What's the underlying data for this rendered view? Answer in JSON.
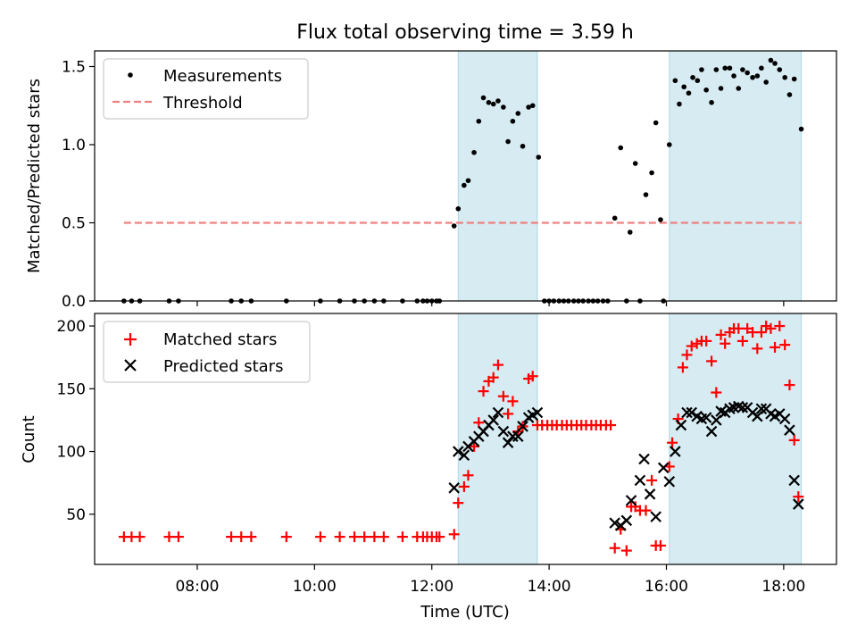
{
  "title": "Flux total observing time = 3.59 h",
  "colors": {
    "band": "#add8e6",
    "threshold": "#f08080",
    "measurements": "#000000",
    "matched": "#ff0000",
    "predicted": "#000000"
  },
  "x_axis": {
    "label": "Time (UTC)",
    "range_hours": [
      6.25,
      18.9
    ],
    "ticks": [
      {
        "hour": 8,
        "label": "08:00"
      },
      {
        "hour": 10,
        "label": "10:00"
      },
      {
        "hour": 12,
        "label": "12:00"
      },
      {
        "hour": 14,
        "label": "14:00"
      },
      {
        "hour": 16,
        "label": "16:00"
      },
      {
        "hour": 18,
        "label": "18:00"
      }
    ]
  },
  "shaded_intervals_hours": [
    [
      12.45,
      13.8
    ],
    [
      16.05,
      18.3
    ]
  ],
  "chart_data": [
    {
      "type": "scatter",
      "panel": "top",
      "ylabel": "Matched/Predicted stars",
      "ylim": [
        0,
        1.6
      ],
      "yticks": [
        {
          "v": 0,
          "label": "0.0"
        },
        {
          "v": 0.5,
          "label": "0.5"
        },
        {
          "v": 1.0,
          "label": "1.0"
        },
        {
          "v": 1.5,
          "label": "1.5"
        }
      ],
      "legend": {
        "placement": "upper-left",
        "entries": [
          {
            "label": "Measurements",
            "marker": "dot"
          },
          {
            "label": "Threshold",
            "marker": "dashed-line"
          }
        ]
      },
      "threshold": {
        "y": 0.5,
        "x_range": [
          6.75,
          18.3
        ]
      },
      "series": [
        {
          "name": "Measurements",
          "points": [
            [
              6.75,
              0
            ],
            [
              6.88,
              0
            ],
            [
              7.02,
              0
            ],
            [
              7.52,
              0
            ],
            [
              7.68,
              0
            ],
            [
              8.58,
              0
            ],
            [
              8.75,
              0
            ],
            [
              8.92,
              0
            ],
            [
              9.52,
              0
            ],
            [
              10.1,
              0
            ],
            [
              10.43,
              0
            ],
            [
              10.68,
              0
            ],
            [
              10.85,
              0
            ],
            [
              11.02,
              0
            ],
            [
              11.18,
              0
            ],
            [
              11.5,
              0
            ],
            [
              11.75,
              0
            ],
            [
              11.85,
              0
            ],
            [
              11.92,
              0
            ],
            [
              12.0,
              0
            ],
            [
              12.08,
              0
            ],
            [
              12.13,
              0
            ],
            [
              12.38,
              0.48
            ],
            [
              12.45,
              0.59
            ],
            [
              12.55,
              0.74
            ],
            [
              12.62,
              0.77
            ],
            [
              12.72,
              0.95
            ],
            [
              12.8,
              1.15
            ],
            [
              12.88,
              1.3
            ],
            [
              12.97,
              1.27
            ],
            [
              13.05,
              1.26
            ],
            [
              13.13,
              1.28
            ],
            [
              13.22,
              1.24
            ],
            [
              13.3,
              1.02
            ],
            [
              13.38,
              1.15
            ],
            [
              13.47,
              1.2
            ],
            [
              13.55,
              0.99
            ],
            [
              13.65,
              1.24
            ],
            [
              13.72,
              1.25
            ],
            [
              13.82,
              0.92
            ],
            [
              13.92,
              0
            ],
            [
              14.0,
              0
            ],
            [
              14.08,
              0
            ],
            [
              14.17,
              0
            ],
            [
              14.25,
              0
            ],
            [
              14.33,
              0
            ],
            [
              14.42,
              0
            ],
            [
              14.5,
              0
            ],
            [
              14.58,
              0
            ],
            [
              14.67,
              0
            ],
            [
              14.75,
              0
            ],
            [
              14.83,
              0
            ],
            [
              14.92,
              0
            ],
            [
              15.0,
              0
            ],
            [
              15.12,
              0.53
            ],
            [
              15.22,
              0.98
            ],
            [
              15.32,
              0
            ],
            [
              15.38,
              0.44
            ],
            [
              15.47,
              0.88
            ],
            [
              15.55,
              0
            ],
            [
              15.65,
              0.68
            ],
            [
              15.75,
              0.82
            ],
            [
              15.82,
              1.14
            ],
            [
              15.9,
              0.52
            ],
            [
              15.95,
              0
            ],
            [
              16.05,
              1.0
            ],
            [
              16.15,
              1.41
            ],
            [
              16.22,
              1.26
            ],
            [
              16.3,
              1.37
            ],
            [
              16.38,
              1.33
            ],
            [
              16.45,
              1.43
            ],
            [
              16.53,
              1.41
            ],
            [
              16.6,
              1.48
            ],
            [
              16.68,
              1.35
            ],
            [
              16.77,
              1.27
            ],
            [
              16.85,
              1.48
            ],
            [
              16.93,
              1.36
            ],
            [
              17.0,
              1.49
            ],
            [
              17.08,
              1.49
            ],
            [
              17.15,
              1.44
            ],
            [
              17.23,
              1.36
            ],
            [
              17.3,
              1.48
            ],
            [
              17.38,
              1.46
            ],
            [
              17.47,
              1.43
            ],
            [
              17.55,
              1.44
            ],
            [
              17.62,
              1.49
            ],
            [
              17.7,
              1.4
            ],
            [
              17.78,
              1.54
            ],
            [
              17.85,
              1.52
            ],
            [
              17.93,
              1.48
            ],
            [
              18.02,
              1.43
            ],
            [
              18.1,
              1.32
            ],
            [
              18.18,
              1.42
            ],
            [
              18.3,
              1.1
            ]
          ]
        }
      ]
    },
    {
      "type": "scatter",
      "panel": "bottom",
      "ylabel": "Count",
      "xlabel": "Time (UTC)",
      "ylim": [
        10,
        210
      ],
      "yticks": [
        {
          "v": 50,
          "label": "50"
        },
        {
          "v": 100,
          "label": "100"
        },
        {
          "v": 150,
          "label": "150"
        },
        {
          "v": 200,
          "label": "200"
        }
      ],
      "legend": {
        "placement": "upper-left",
        "entries": [
          {
            "label": "Matched stars",
            "marker": "plus"
          },
          {
            "label": "Predicted stars",
            "marker": "cross"
          }
        ]
      },
      "series": [
        {
          "name": "Matched stars",
          "points": [
            [
              6.75,
              32
            ],
            [
              6.88,
              32
            ],
            [
              7.02,
              32
            ],
            [
              7.52,
              32
            ],
            [
              7.68,
              32
            ],
            [
              8.58,
              32
            ],
            [
              8.75,
              32
            ],
            [
              8.92,
              32
            ],
            [
              9.52,
              32
            ],
            [
              10.1,
              32
            ],
            [
              10.43,
              32
            ],
            [
              10.68,
              32
            ],
            [
              10.85,
              32
            ],
            [
              11.02,
              32
            ],
            [
              11.18,
              32
            ],
            [
              11.5,
              32
            ],
            [
              11.75,
              32
            ],
            [
              11.85,
              32
            ],
            [
              11.92,
              32
            ],
            [
              12.0,
              32
            ],
            [
              12.08,
              32
            ],
            [
              12.13,
              32
            ],
            [
              12.38,
              34
            ],
            [
              12.45,
              59
            ],
            [
              12.55,
              72
            ],
            [
              12.62,
              81
            ],
            [
              12.72,
              104
            ],
            [
              12.8,
              123
            ],
            [
              12.88,
              148
            ],
            [
              12.97,
              156
            ],
            [
              13.05,
              159
            ],
            [
              13.13,
              169
            ],
            [
              13.22,
              144
            ],
            [
              13.3,
              130
            ],
            [
              13.38,
              140
            ],
            [
              13.47,
              116
            ],
            [
              13.55,
              120
            ],
            [
              13.65,
              158
            ],
            [
              13.72,
              160
            ],
            [
              13.8,
              121
            ],
            [
              13.88,
              121
            ],
            [
              13.97,
              121
            ],
            [
              14.05,
              121
            ],
            [
              14.13,
              121
            ],
            [
              14.22,
              121
            ],
            [
              14.3,
              121
            ],
            [
              14.38,
              121
            ],
            [
              14.47,
              121
            ],
            [
              14.55,
              121
            ],
            [
              14.63,
              121
            ],
            [
              14.72,
              121
            ],
            [
              14.8,
              121
            ],
            [
              14.88,
              121
            ],
            [
              14.97,
              121
            ],
            [
              15.05,
              121
            ],
            [
              15.12,
              23
            ],
            [
              15.22,
              38
            ],
            [
              15.32,
              21
            ],
            [
              15.4,
              56
            ],
            [
              15.47,
              56
            ],
            [
              15.55,
              53
            ],
            [
              15.65,
              53
            ],
            [
              15.75,
              77
            ],
            [
              15.82,
              25
            ],
            [
              15.9,
              25
            ],
            [
              16.05,
              88
            ],
            [
              16.1,
              107
            ],
            [
              16.2,
              126
            ],
            [
              16.28,
              167
            ],
            [
              16.35,
              177
            ],
            [
              16.43,
              184
            ],
            [
              16.52,
              186
            ],
            [
              16.6,
              188
            ],
            [
              16.68,
              188
            ],
            [
              16.77,
              172
            ],
            [
              16.85,
              147
            ],
            [
              16.93,
              193
            ],
            [
              17.0,
              186
            ],
            [
              17.08,
              195
            ],
            [
              17.15,
              198
            ],
            [
              17.23,
              198
            ],
            [
              17.3,
              188
            ],
            [
              17.38,
              198
            ],
            [
              17.47,
              195
            ],
            [
              17.55,
              182
            ],
            [
              17.62,
              195
            ],
            [
              17.7,
              200
            ],
            [
              17.78,
              198
            ],
            [
              17.85,
              183
            ],
            [
              17.93,
              200
            ],
            [
              18.02,
              185
            ],
            [
              18.1,
              153
            ],
            [
              18.18,
              109
            ],
            [
              18.25,
              64
            ]
          ]
        },
        {
          "name": "Predicted stars",
          "points": [
            [
              12.38,
              71
            ],
            [
              12.45,
              100
            ],
            [
              12.55,
              97
            ],
            [
              12.62,
              104
            ],
            [
              12.72,
              108
            ],
            [
              12.8,
              112
            ],
            [
              12.88,
              116
            ],
            [
              12.97,
              121
            ],
            [
              13.05,
              125
            ],
            [
              13.13,
              131
            ],
            [
              13.22,
              116
            ],
            [
              13.3,
              107
            ],
            [
              13.38,
              112
            ],
            [
              13.47,
              112
            ],
            [
              13.55,
              120
            ],
            [
              13.65,
              127
            ],
            [
              13.72,
              129
            ],
            [
              13.8,
              131
            ],
            [
              15.12,
              43
            ],
            [
              15.22,
              41
            ],
            [
              15.32,
              45
            ],
            [
              15.4,
              61
            ],
            [
              15.55,
              77
            ],
            [
              15.62,
              94
            ],
            [
              15.72,
              66
            ],
            [
              15.82,
              48
            ],
            [
              15.95,
              87
            ],
            [
              16.05,
              76
            ],
            [
              16.15,
              100
            ],
            [
              16.25,
              121
            ],
            [
              16.35,
              131
            ],
            [
              16.43,
              131
            ],
            [
              16.52,
              128
            ],
            [
              16.6,
              126
            ],
            [
              16.68,
              127
            ],
            [
              16.77,
              116
            ],
            [
              16.85,
              125
            ],
            [
              16.93,
              132
            ],
            [
              17.0,
              131
            ],
            [
              17.08,
              134
            ],
            [
              17.15,
              135
            ],
            [
              17.23,
              136
            ],
            [
              17.3,
              135
            ],
            [
              17.38,
              135
            ],
            [
              17.47,
              131
            ],
            [
              17.55,
              128
            ],
            [
              17.62,
              134
            ],
            [
              17.7,
              134
            ],
            [
              17.78,
              130
            ],
            [
              17.85,
              128
            ],
            [
              17.93,
              130
            ],
            [
              18.02,
              126
            ],
            [
              18.1,
              117
            ],
            [
              18.18,
              77
            ],
            [
              18.25,
              58
            ]
          ]
        }
      ]
    }
  ]
}
